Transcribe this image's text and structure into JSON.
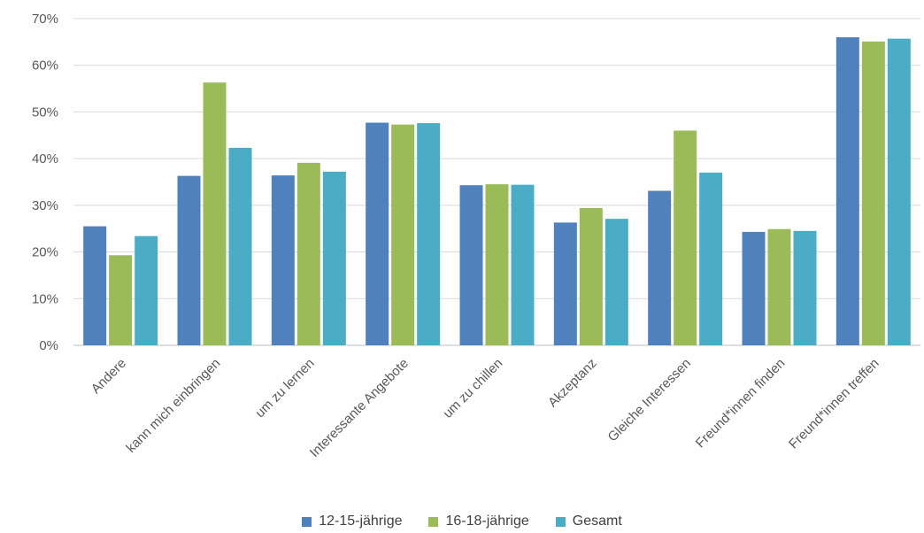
{
  "chart_data": {
    "type": "bar",
    "categories": [
      "Andere",
      "kann mich einbringen",
      "um zu lernen",
      "Interessante Angebote",
      "um zu chillen",
      "Akzeptanz",
      "Gleiche Interessen",
      "Freund*innen finden",
      "Freund*innen treffen"
    ],
    "series": [
      {
        "name": "12-15-jährige",
        "color": "#4f81bd",
        "values": [
          25.5,
          36.3,
          36.4,
          47.7,
          34.3,
          26.3,
          33.1,
          24.3,
          66.0
        ]
      },
      {
        "name": "16-18-jährige",
        "color": "#9bbb59",
        "values": [
          19.3,
          56.3,
          39.1,
          47.3,
          34.5,
          29.4,
          46.0,
          24.9,
          65.1
        ]
      },
      {
        "name": "Gesamt",
        "color": "#4bacc6",
        "values": [
          23.4,
          42.3,
          37.2,
          47.6,
          34.4,
          27.1,
          37.0,
          24.5,
          65.7
        ]
      }
    ],
    "yticks": [
      "0%",
      "10%",
      "20%",
      "30%",
      "40%",
      "50%",
      "60%",
      "70%"
    ],
    "ylim": [
      0,
      70
    ],
    "grid": true,
    "legend_position": "bottom"
  }
}
